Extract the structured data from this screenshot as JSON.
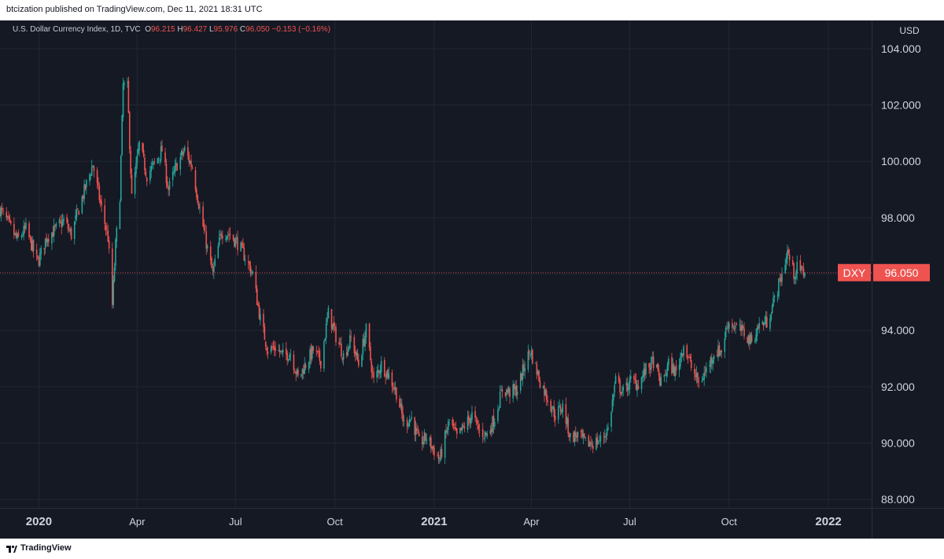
{
  "header": {
    "publisher_text": "btcization published on TradingView.com, Dec 11, 2021 18:31 UTC"
  },
  "legend": {
    "symbol": "U.S. Dollar Currency Index, 1D, TVC",
    "o_label": "O",
    "o_value": "96.215",
    "h_label": "H",
    "h_value": "96.427",
    "l_label": "L",
    "l_value": "95.976",
    "c_label": "C",
    "c_value": "96.050",
    "change": "−0.153 (−0.16%)"
  },
  "price_axis": {
    "currency": "USD",
    "ticks": [
      "104.000",
      "102.000",
      "100.000",
      "98.000",
      "96.000",
      "94.000",
      "92.000",
      "90.000",
      "88.000"
    ]
  },
  "price_tag": {
    "symbol": "DXY",
    "value": "96.050"
  },
  "footer": {
    "brand": "TradingView"
  },
  "colors": {
    "background": "#151924",
    "grid": "#232734",
    "up": "#26a69a",
    "down": "#ef5350",
    "axis_text": "#d1d4dc"
  },
  "chart_data": {
    "type": "line",
    "title": "U.S. Dollar Currency Index, 1D, TVC",
    "symbol": "DXY",
    "style": "candlestick",
    "x_ticks": [
      "2020",
      "Apr",
      "Jul",
      "Oct",
      "2021",
      "Apr",
      "Jul",
      "Oct",
      "2022"
    ],
    "x_tick_dates": [
      "2020-01-01",
      "2020-04-01",
      "2020-07-01",
      "2020-10-01",
      "2021-01-01",
      "2021-04-01",
      "2021-07-01",
      "2021-10-01",
      "2022-01-01"
    ],
    "xlim": [
      "2019-11-26",
      "2022-02-10"
    ],
    "ylim": [
      87.7,
      105.0
    ],
    "y_ticks": [
      88,
      90,
      92,
      94,
      96,
      98,
      100,
      102,
      104
    ],
    "last_price": 96.05,
    "grid": true,
    "series": [
      {
        "values": [
          [
            "2019-11-26",
            98.3
          ],
          [
            "2019-12-05",
            97.7
          ],
          [
            "2019-12-12",
            97.2
          ],
          [
            "2019-12-20",
            97.6
          ],
          [
            "2019-12-31",
            96.4
          ],
          [
            "2020-01-08",
            97.3
          ],
          [
            "2020-01-17",
            97.6
          ],
          [
            "2020-01-24",
            97.9
          ],
          [
            "2020-01-31",
            97.4
          ],
          [
            "2020-02-10",
            98.7
          ],
          [
            "2020-02-20",
            99.9
          ],
          [
            "2020-02-27",
            98.5
          ],
          [
            "2020-03-05",
            97.3
          ],
          [
            "2020-03-09",
            94.9
          ],
          [
            "2020-03-12",
            97.0
          ],
          [
            "2020-03-16",
            98.8
          ],
          [
            "2020-03-19",
            102.7
          ],
          [
            "2020-03-23",
            102.6
          ],
          [
            "2020-03-27",
            98.7
          ],
          [
            "2020-04-03",
            100.6
          ],
          [
            "2020-04-10",
            99.5
          ],
          [
            "2020-04-17",
            99.9
          ],
          [
            "2020-04-24",
            100.4
          ],
          [
            "2020-04-30",
            99.0
          ],
          [
            "2020-05-08",
            99.9
          ],
          [
            "2020-05-15",
            100.4
          ],
          [
            "2020-05-22",
            99.8
          ],
          [
            "2020-05-29",
            98.3
          ],
          [
            "2020-06-05",
            96.9
          ],
          [
            "2020-06-10",
            96.0
          ],
          [
            "2020-06-18",
            97.5
          ],
          [
            "2020-06-26",
            97.4
          ],
          [
            "2020-07-03",
            97.1
          ],
          [
            "2020-07-10",
            96.6
          ],
          [
            "2020-07-17",
            96.0
          ],
          [
            "2020-07-24",
            94.4
          ],
          [
            "2020-07-31",
            93.3
          ],
          [
            "2020-08-07",
            93.4
          ],
          [
            "2020-08-14",
            93.1
          ],
          [
            "2020-08-21",
            93.2
          ],
          [
            "2020-08-28",
            92.3
          ],
          [
            "2020-09-04",
            92.8
          ],
          [
            "2020-09-11",
            93.3
          ],
          [
            "2020-09-18",
            92.9
          ],
          [
            "2020-09-25",
            94.6
          ],
          [
            "2020-10-02",
            93.8
          ],
          [
            "2020-10-09",
            93.1
          ],
          [
            "2020-10-16",
            93.7
          ],
          [
            "2020-10-23",
            92.8
          ],
          [
            "2020-10-30",
            94.0
          ],
          [
            "2020-11-06",
            92.2
          ],
          [
            "2020-11-13",
            92.8
          ],
          [
            "2020-11-20",
            92.4
          ],
          [
            "2020-11-27",
            91.8
          ],
          [
            "2020-12-04",
            90.7
          ],
          [
            "2020-12-11",
            90.9
          ],
          [
            "2020-12-18",
            90.0
          ],
          [
            "2020-12-25",
            90.2
          ],
          [
            "2021-01-06",
            89.4
          ],
          [
            "2021-01-15",
            90.8
          ],
          [
            "2021-01-22",
            90.2
          ],
          [
            "2021-01-29",
            90.6
          ],
          [
            "2021-02-05",
            91.0
          ],
          [
            "2021-02-12",
            90.4
          ],
          [
            "2021-02-19",
            90.3
          ],
          [
            "2021-02-26",
            90.9
          ],
          [
            "2021-03-05",
            91.9
          ],
          [
            "2021-03-12",
            91.8
          ],
          [
            "2021-03-19",
            91.9
          ],
          [
            "2021-03-26",
            92.8
          ],
          [
            "2021-03-31",
            93.3
          ],
          [
            "2021-04-09",
            92.2
          ],
          [
            "2021-04-16",
            91.6
          ],
          [
            "2021-04-23",
            91.0
          ],
          [
            "2021-04-30",
            91.3
          ],
          [
            "2021-05-07",
            90.2
          ],
          [
            "2021-05-14",
            90.3
          ],
          [
            "2021-05-21",
            90.0
          ],
          [
            "2021-05-28",
            90.0
          ],
          [
            "2021-06-04",
            90.1
          ],
          [
            "2021-06-11",
            90.5
          ],
          [
            "2021-06-18",
            92.2
          ],
          [
            "2021-06-25",
            91.8
          ],
          [
            "2021-07-02",
            92.2
          ],
          [
            "2021-07-09",
            92.1
          ],
          [
            "2021-07-16",
            92.6
          ],
          [
            "2021-07-23",
            92.9
          ],
          [
            "2021-07-30",
            92.1
          ],
          [
            "2021-08-06",
            92.8
          ],
          [
            "2021-08-13",
            92.5
          ],
          [
            "2021-08-20",
            93.5
          ],
          [
            "2021-08-27",
            92.7
          ],
          [
            "2021-09-03",
            92.1
          ],
          [
            "2021-09-10",
            92.6
          ],
          [
            "2021-09-17",
            93.2
          ],
          [
            "2021-09-24",
            93.3
          ],
          [
            "2021-09-30",
            94.3
          ],
          [
            "2021-10-08",
            94.1
          ],
          [
            "2021-10-15",
            93.9
          ],
          [
            "2021-10-22",
            93.6
          ],
          [
            "2021-10-29",
            94.2
          ],
          [
            "2021-11-05",
            94.3
          ],
          [
            "2021-11-12",
            95.1
          ],
          [
            "2021-11-19",
            96.0
          ],
          [
            "2021-11-24",
            96.8
          ],
          [
            "2021-11-30",
            96.0
          ],
          [
            "2021-12-03",
            96.2
          ],
          [
            "2021-12-10",
            96.05
          ]
        ]
      }
    ]
  }
}
